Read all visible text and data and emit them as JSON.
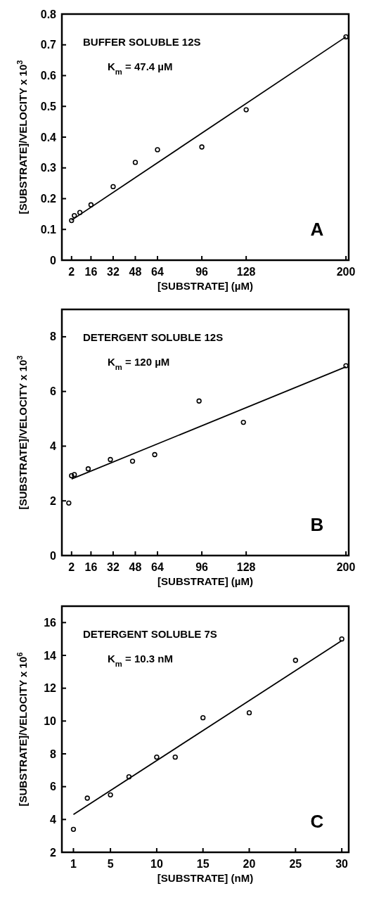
{
  "chart_data": [
    {
      "type": "scatter",
      "xlabel": "[SUBSTRATE] (µM)",
      "ylabel": "[SUBSTRATE]/VELOCITY x 10$^{3}$",
      "annotations": [
        "BUFFER SOLUBLE  12S",
        "K$_{m}$ = 47.4 µM",
        "A"
      ],
      "xlim": [
        -5,
        202
      ],
      "ylim": [
        0,
        0.8
      ],
      "xticks": [
        2,
        16,
        32,
        48,
        64,
        96,
        128,
        200
      ],
      "yticks": [
        0,
        0.1,
        0.2,
        0.3,
        0.4,
        0.5,
        0.6,
        0.7,
        0.8
      ],
      "grid": false,
      "series": [
        {
          "marker": "circle",
          "color": "#000000",
          "x": [
            2,
            4,
            8,
            16,
            32,
            48,
            64,
            96,
            128,
            200
          ],
          "values": [
            0.129,
            0.145,
            0.155,
            0.18,
            0.239,
            0.318,
            0.359,
            0.368,
            0.489,
            0.726
          ]
        },
        {
          "type": "line",
          "marker": "none",
          "color": "#000000",
          "x": [
            2,
            200
          ],
          "values": [
            0.13,
            0.726
          ]
        }
      ]
    },
    {
      "type": "scatter",
      "xlabel": "[SUBSTRATE] (µM)",
      "ylabel": "[SUBSTRATE]/VELOCITY x 10$^{3}$",
      "annotations": [
        "DETERGENT SOLUBLE  12S",
        "K$_{m}$ = 120 µM",
        "B"
      ],
      "xlim": [
        -5,
        202
      ],
      "ylim": [
        0,
        9
      ],
      "xticks": [
        2,
        16,
        32,
        48,
        64,
        96,
        128,
        200
      ],
      "yticks": [
        0,
        2,
        4,
        6,
        8
      ],
      "grid": false,
      "series": [
        {
          "marker": "circle",
          "color": "#000000",
          "x": [
            0,
            2,
            4,
            14,
            30,
            46,
            62,
            94,
            126,
            200
          ],
          "values": [
            1.92,
            2.92,
            2.96,
            3.17,
            3.51,
            3.45,
            3.69,
            5.65,
            4.87,
            6.94
          ]
        },
        {
          "type": "line",
          "marker": "none",
          "color": "#000000",
          "x": [
            2,
            200
          ],
          "values": [
            2.8,
            6.9
          ]
        }
      ]
    },
    {
      "type": "scatter",
      "xlabel": "[SUBSTRATE] (nM)",
      "ylabel": "[SUBSTRATE]/VELOCITY x 10$^{6}$",
      "annotations": [
        "DETERGENT SOLUBLE  7S",
        "K$_{m}$ = 10.3 nM",
        "C"
      ],
      "xlim": [
        -0.25,
        30.75
      ],
      "ylim": [
        2,
        17
      ],
      "xticks": [
        1,
        5,
        10,
        15,
        20,
        25,
        30
      ],
      "yticks": [
        2,
        4,
        6,
        8,
        10,
        12,
        14,
        16
      ],
      "grid": false,
      "series": [
        {
          "marker": "circle",
          "color": "#000000",
          "x": [
            1,
            2.5,
            5,
            7,
            10,
            12,
            15,
            20,
            25,
            30
          ],
          "values": [
            3.4,
            5.3,
            5.5,
            6.6,
            7.8,
            7.8,
            10.2,
            10.5,
            13.7,
            15.0
          ]
        },
        {
          "type": "line",
          "marker": "none",
          "color": "#000000",
          "x": [
            1,
            30
          ],
          "values": [
            4.3,
            14.9
          ]
        }
      ]
    }
  ]
}
